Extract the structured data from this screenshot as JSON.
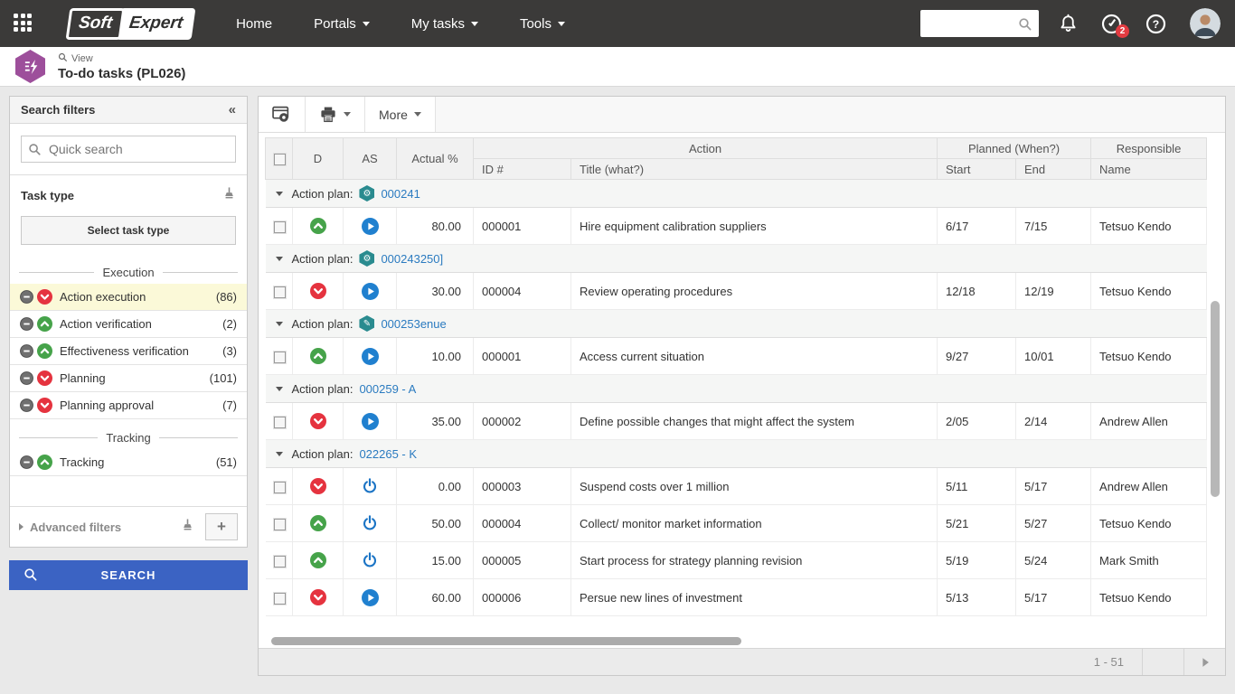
{
  "colors": {
    "accent_blue": "#3b63c3",
    "link_blue": "#2b7bc0",
    "status_red": "#e5333f",
    "status_green": "#46a34a",
    "highlight_yellow": "#fbf9d8",
    "badge_red": "#e23b41",
    "plan_teal": "#2a8b8f",
    "header_purple": "#9d4f9b",
    "nav_dark": "#3b3a39",
    "as_blue": "#2080cf"
  },
  "topnav": {
    "brand_part1": "Soft",
    "brand_part2": "Expert",
    "menu": [
      {
        "label": "Home",
        "dropdown": false
      },
      {
        "label": "Portals",
        "dropdown": true
      },
      {
        "label": "My tasks",
        "dropdown": true
      },
      {
        "label": "Tools",
        "dropdown": true
      }
    ],
    "search_value": "",
    "notifications_badge": "2"
  },
  "page_header": {
    "eyebrow": "View",
    "title": "To-do tasks (PL026)"
  },
  "sidebar": {
    "title": "Search filters",
    "collapse_icon": "«",
    "quick_search_placeholder": "Quick search",
    "task_type_label": "Task type",
    "select_task_type_button": "Select task type",
    "sections": [
      {
        "divider": "Execution",
        "items": [
          {
            "label": "Action execution",
            "count": "(86)",
            "status": "red",
            "highlighted": true
          },
          {
            "label": "Action verification",
            "count": "(2)",
            "status": "green",
            "highlighted": false
          },
          {
            "label": "Effectiveness verification",
            "count": "(3)",
            "status": "green",
            "highlighted": false
          },
          {
            "label": "Planning",
            "count": "(101)",
            "status": "red",
            "highlighted": false
          },
          {
            "label": "Planning approval",
            "count": "(7)",
            "status": "red",
            "highlighted": false
          }
        ]
      },
      {
        "divider": "Tracking",
        "items": [
          {
            "label": "Tracking",
            "count": "(51)",
            "status": "green",
            "highlighted": false
          }
        ]
      }
    ],
    "advanced_filters_label": "Advanced filters",
    "search_button_label": "SEARCH"
  },
  "toolbar": {
    "more_label": "More"
  },
  "table": {
    "headers": {
      "d": "D",
      "as": "AS",
      "actual_pct": "Actual %",
      "action": "Action",
      "id": "ID #",
      "title": "Title (what?)",
      "planned": "Planned (When?)",
      "start": "Start",
      "end": "End",
      "responsible": "Responsible",
      "name": "Name"
    },
    "group_prefix": "Action plan:",
    "groups": [
      {
        "icon": "gear",
        "link": "000241",
        "rows": [
          {
            "d": "green",
            "as": "play",
            "actual": "80.00",
            "id": "000001",
            "title": "Hire equipment calibration suppliers",
            "start": "6/17",
            "end": "7/15",
            "name": "Tetsuo Kendo"
          }
        ]
      },
      {
        "icon": "gear",
        "link": "000243250]",
        "rows": [
          {
            "d": "red",
            "as": "play",
            "actual": "30.00",
            "id": "000004",
            "title": "Review operating procedures",
            "start": "12/18",
            "end": "12/19",
            "name": "Tetsuo Kendo"
          }
        ]
      },
      {
        "icon": "pencil",
        "link": "000253enue",
        "rows": [
          {
            "d": "green",
            "as": "play",
            "actual": "10.00",
            "id": "000001",
            "title": "Access current situation",
            "start": "9/27",
            "end": "10/01",
            "name": "Tetsuo Kendo"
          }
        ]
      },
      {
        "icon": null,
        "link": "000259 - A",
        "rows": [
          {
            "d": "red",
            "as": "play",
            "actual": "35.00",
            "id": "000002",
            "title": "Define possible changes that might affect the system",
            "start": "2/05",
            "end": "2/14",
            "name": "Andrew Allen"
          }
        ]
      },
      {
        "icon": null,
        "link": "022265 - K",
        "rows": [
          {
            "d": "red",
            "as": "power",
            "actual": "0.00",
            "id": "000003",
            "title": "Suspend costs over 1 million",
            "start": "5/11",
            "end": "5/17",
            "name": "Andrew Allen"
          },
          {
            "d": "green",
            "as": "power",
            "actual": "50.00",
            "id": "000004",
            "title": "Collect/ monitor market information",
            "start": "5/21",
            "end": "5/27",
            "name": "Tetsuo Kendo"
          },
          {
            "d": "green",
            "as": "power",
            "actual": "15.00",
            "id": "000005",
            "title": "Start process for strategy planning revision",
            "start": "5/19",
            "end": "5/24",
            "name": "Mark Smith"
          },
          {
            "d": "red",
            "as": "play",
            "actual": "60.00",
            "id": "000006",
            "title": "Persue new lines of investment",
            "start": "5/13",
            "end": "5/17",
            "name": "Tetsuo Kendo"
          }
        ]
      }
    ]
  },
  "pagination": {
    "range_label": "1 - 51"
  }
}
